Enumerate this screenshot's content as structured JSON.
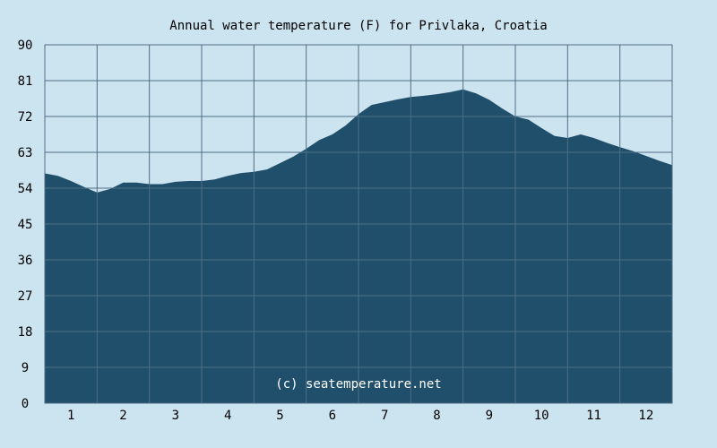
{
  "chart_data": {
    "type": "area",
    "title": "Annual water temperature (F) for Privlaka, Croatia",
    "xlabel": "",
    "ylabel": "",
    "xlim": [
      0.5,
      12.5
    ],
    "ylim": [
      0,
      90
    ],
    "yticks": [
      "0",
      "9",
      "18",
      "27",
      "36",
      "45",
      "54",
      "63",
      "72",
      "81",
      "90"
    ],
    "xticks": [
      "1",
      "2",
      "3",
      "4",
      "5",
      "6",
      "7",
      "8",
      "9",
      "10",
      "11",
      "12"
    ],
    "grid": true,
    "watermark": "(c) seatemperature.net",
    "series": [
      {
        "x": [
          0.5,
          0.75,
          1.0,
          1.25,
          1.5,
          1.75,
          2.0,
          2.25,
          2.5,
          2.75,
          3.0,
          3.25,
          3.5,
          3.75,
          4.0,
          4.25,
          4.5,
          4.75,
          5.0,
          5.25,
          5.5,
          5.75,
          6.0,
          6.25,
          6.5,
          6.75,
          7.0,
          7.25,
          7.5,
          7.75,
          8.0,
          8.25,
          8.5,
          8.75,
          9.0,
          9.25,
          9.5,
          9.75,
          10.0,
          10.25,
          10.5,
          10.75,
          11.0,
          11.25,
          11.5,
          11.75,
          12.0,
          12.25,
          12.5
        ],
        "values": [
          57.7,
          57.1,
          55.8,
          54.3,
          52.9,
          53.8,
          55.4,
          55.4,
          55.0,
          55.0,
          55.6,
          55.8,
          55.8,
          56.2,
          57.1,
          57.8,
          58.1,
          58.7,
          60.3,
          61.9,
          63.9,
          66.1,
          67.5,
          69.7,
          72.6,
          74.9,
          75.6,
          76.3,
          76.9,
          77.2,
          77.6,
          78.1,
          78.8,
          77.8,
          76.2,
          74.0,
          72.0,
          71.2,
          69.1,
          67.1,
          66.6,
          67.5,
          66.6,
          65.4,
          64.3,
          63.3,
          62.1,
          60.9,
          59.8
        ],
        "color": "#1f4f6a"
      }
    ],
    "colors": {
      "background": "#cce3f0",
      "fill": "#1f4f6a",
      "grid": "#4f6f86",
      "text": "#000000",
      "watermark": "#ffffff"
    }
  }
}
